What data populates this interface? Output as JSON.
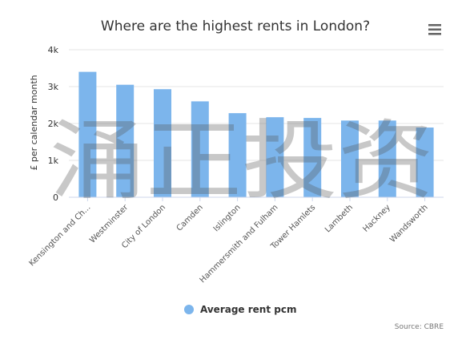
{
  "chart_data": {
    "type": "bar",
    "title": "Where are the highest rents in London?",
    "xlabel": "",
    "ylabel": "£ per calendar month",
    "categories": [
      "Kensington and Ch...",
      "Westminster",
      "City of London",
      "Camden",
      "Islington",
      "Hammersmith and Fulham",
      "Tower Hamlets",
      "Lambeth",
      "Hackney",
      "Wandsworth"
    ],
    "series": [
      {
        "name": "Average rent pcm",
        "values": [
          3400,
          3050,
          2930,
          2600,
          2280,
          2170,
          2150,
          2080,
          2080,
          1890
        ]
      }
    ],
    "ylim": [
      0,
      4000
    ],
    "yticks": [
      0,
      1000,
      2000,
      3000,
      4000
    ],
    "ytick_labels": [
      "0",
      "1k",
      "2k",
      "3k",
      "4k"
    ],
    "grid": true,
    "legend_position": "bottom-center",
    "credit": "Source: CBRE",
    "colors": {
      "bar": "#7cb5ec",
      "grid": "#e6e6e6",
      "axis": "#ccd6eb",
      "text": "#333333"
    }
  },
  "watermark": "涌正投资",
  "menu_icon": "hamburger-menu-icon"
}
